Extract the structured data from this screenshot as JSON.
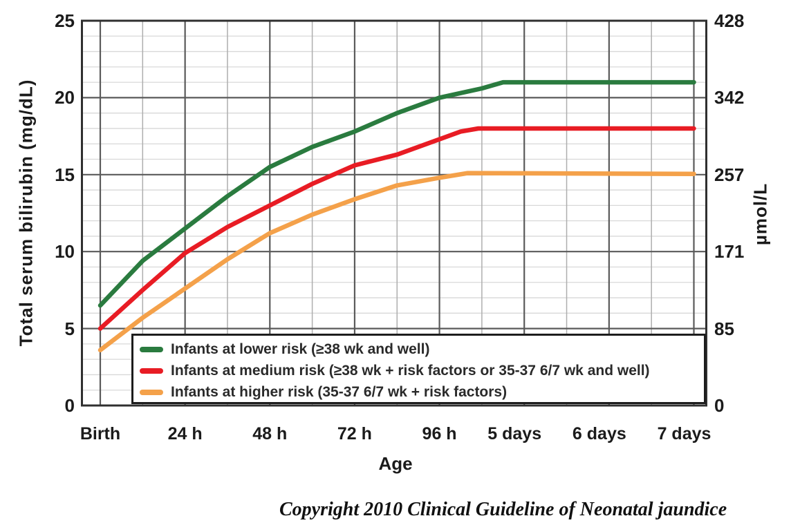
{
  "page": {
    "background": "#ffffff"
  },
  "chart_data": {
    "type": "line",
    "title": "",
    "xlabel": "Age",
    "ylabel_left": "Total serum bilirubin (mg/dL)",
    "ylabel_right": "µmol/L",
    "x_tick_labels": [
      "Birth",
      "24 h",
      "48 h",
      "72 h",
      "96 h",
      "5 days",
      "6 days",
      "7 days"
    ],
    "x_tick_hours": [
      0,
      24,
      48,
      72,
      96,
      120,
      144,
      168
    ],
    "y_left_tick_labels": [
      "0",
      "5",
      "10",
      "15",
      "20",
      "25"
    ],
    "y_left_tick_values": [
      0,
      5,
      10,
      15,
      20,
      25
    ],
    "y_right_tick_labels": [
      "0",
      "85",
      "171",
      "257",
      "342",
      "428"
    ],
    "ylim": [
      0,
      25
    ],
    "xlim_hours": [
      0,
      168
    ],
    "grid": {
      "x_major_every_hours": 24,
      "x_minor_every_hours": 12,
      "y_major_every": 5,
      "y_minor_every": 1
    },
    "legend_position": "bottom-inside",
    "series": [
      {
        "name": "Infants at lower risk (≥38 wk and well)",
        "color": "#2a7b3f",
        "points_hours_mgdl": [
          [
            0,
            6.5
          ],
          [
            12,
            9.4
          ],
          [
            24,
            11.5
          ],
          [
            36,
            13.6
          ],
          [
            48,
            15.5
          ],
          [
            60,
            16.8
          ],
          [
            72,
            17.8
          ],
          [
            84,
            19.0
          ],
          [
            96,
            20.0
          ],
          [
            108,
            20.6
          ],
          [
            114,
            21.0
          ],
          [
            168,
            21.0
          ]
        ]
      },
      {
        "name": "Infants at medium risk (≥38 wk + risk factors or 35-37 6/7 wk and well)",
        "color": "#e81c24",
        "points_hours_mgdl": [
          [
            0,
            5.0
          ],
          [
            12,
            7.5
          ],
          [
            24,
            9.9
          ],
          [
            36,
            11.6
          ],
          [
            48,
            13.0
          ],
          [
            60,
            14.4
          ],
          [
            72,
            15.6
          ],
          [
            84,
            16.3
          ],
          [
            96,
            17.3
          ],
          [
            102,
            17.8
          ],
          [
            107,
            18.0
          ],
          [
            168,
            18.0
          ]
        ]
      },
      {
        "name": "Infants at higher risk (35-37 6/7 wk + risk factors)",
        "color": "#f4a14a",
        "points_hours_mgdl": [
          [
            0,
            3.6
          ],
          [
            12,
            5.7
          ],
          [
            24,
            7.6
          ],
          [
            36,
            9.5
          ],
          [
            48,
            11.2
          ],
          [
            60,
            12.4
          ],
          [
            72,
            13.4
          ],
          [
            84,
            14.3
          ],
          [
            96,
            14.8
          ],
          [
            104,
            15.1
          ],
          [
            168,
            15.05
          ]
        ]
      }
    ],
    "grid_colors": {
      "major": "#5a5a5a",
      "minor_h": "#d8d8d8",
      "minor_v": "#aeaeae",
      "border": "#2f2f2f"
    }
  },
  "footer": {
    "copyright": "Copyright 2010 Clinical Guideline of Neonatal jaundice"
  }
}
